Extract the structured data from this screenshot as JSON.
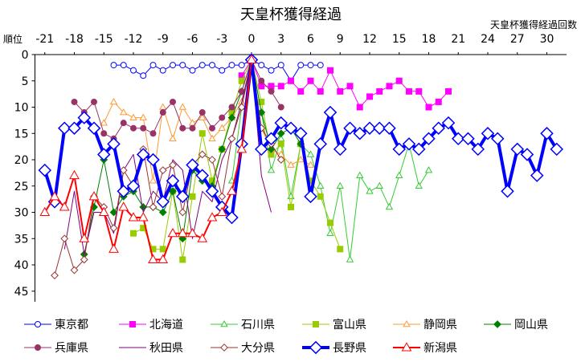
{
  "chart_data": {
    "type": "line",
    "title": "天皇杯獲得経過",
    "xlabel": "天皇杯獲得経過回数",
    "ylabel": "順位",
    "x_ticks": [
      -21,
      -18,
      -15,
      -12,
      -9,
      -6,
      -3,
      0,
      3,
      6,
      9,
      12,
      15,
      18,
      21,
      24,
      27,
      30
    ],
    "y_ticks": [
      0,
      5,
      10,
      15,
      20,
      25,
      30,
      35,
      40,
      45
    ],
    "xlim": [
      -22,
      32
    ],
    "ylim": [
      0,
      47
    ],
    "y_reversed": true,
    "x_axis_position": "top",
    "grid": false,
    "legend": "bottom",
    "series": [
      {
        "name": "東京都",
        "color": "#0000FF",
        "marker": "circle",
        "marker_fill": "open",
        "points": [
          [
            -14,
            2
          ],
          [
            -13,
            2
          ],
          [
            -12,
            3
          ],
          [
            -11,
            4
          ],
          [
            -10,
            2
          ],
          [
            -9,
            3
          ],
          [
            -8,
            2
          ],
          [
            -7,
            2
          ],
          [
            -6,
            3
          ],
          [
            -5,
            2
          ],
          [
            -4,
            2
          ],
          [
            -3,
            3
          ],
          [
            -2,
            2
          ],
          [
            -1,
            2
          ],
          [
            0,
            1
          ],
          [
            1,
            2
          ],
          [
            2,
            3
          ],
          [
            3,
            2
          ],
          [
            4,
            5
          ],
          [
            5,
            2
          ],
          [
            6,
            2
          ],
          [
            7,
            2
          ]
        ]
      },
      {
        "name": "北海道",
        "color": "#FF00FF",
        "marker": "square",
        "marker_fill": "filled",
        "points": [
          [
            -1,
            4
          ],
          [
            0,
            1
          ],
          [
            1,
            6
          ],
          [
            2,
            6
          ],
          [
            3,
            6
          ],
          [
            4,
            5
          ],
          [
            5,
            7
          ],
          [
            6,
            5
          ],
          [
            7,
            7
          ],
          [
            8,
            3
          ],
          [
            9,
            7
          ],
          [
            10,
            6
          ],
          [
            11,
            10
          ],
          [
            12,
            8
          ],
          [
            13,
            7
          ],
          [
            14,
            6
          ],
          [
            15,
            5
          ],
          [
            16,
            7
          ],
          [
            17,
            7
          ],
          [
            18,
            10
          ],
          [
            19,
            9
          ],
          [
            20,
            7
          ]
        ]
      },
      {
        "name": "石川県",
        "color": "#33CC33",
        "marker": "triangle",
        "marker_fill": "open",
        "points": [
          [
            -2,
            24
          ],
          [
            -1,
            10
          ],
          [
            0,
            1
          ],
          [
            1,
            11
          ],
          [
            2,
            22
          ],
          [
            3,
            16
          ],
          [
            4,
            27
          ],
          [
            5,
            17
          ],
          [
            6,
            19
          ],
          [
            7,
            25
          ],
          [
            8,
            34
          ],
          [
            9,
            25
          ],
          [
            10,
            39
          ],
          [
            11,
            23
          ],
          [
            12,
            26
          ],
          [
            13,
            25
          ],
          [
            14,
            29
          ],
          [
            15,
            23
          ],
          [
            16,
            17
          ],
          [
            17,
            25
          ],
          [
            18,
            22
          ]
        ]
      },
      {
        "name": "富山県",
        "color": "#99CC00",
        "marker": "square",
        "marker_fill": "filled",
        "points": [
          [
            -12,
            34
          ],
          [
            -11,
            33
          ],
          [
            -10,
            37
          ],
          [
            -9,
            37
          ],
          [
            -8,
            26
          ],
          [
            -7,
            39
          ],
          [
            -6,
            27
          ],
          [
            -5,
            15
          ],
          [
            -4,
            24
          ],
          [
            -3,
            18
          ],
          [
            -2,
            11
          ],
          [
            -1,
            5
          ],
          [
            0,
            1
          ],
          [
            1,
            9
          ],
          [
            2,
            19
          ],
          [
            3,
            17
          ],
          [
            4,
            29
          ],
          [
            5,
            17
          ],
          [
            6,
            24
          ],
          [
            7,
            27
          ],
          [
            8,
            32
          ],
          [
            9,
            37
          ]
        ]
      },
      {
        "name": "静岡県",
        "color": "#FF9933",
        "marker": "triangle",
        "marker_fill": "open",
        "points": [
          [
            -15,
            13
          ],
          [
            -14,
            9
          ],
          [
            -13,
            11
          ],
          [
            -12,
            12
          ],
          [
            -11,
            12
          ],
          [
            -10,
            24
          ],
          [
            -9,
            10
          ],
          [
            -8,
            16
          ],
          [
            -7,
            10
          ],
          [
            -6,
            13
          ],
          [
            -5,
            12
          ],
          [
            -4,
            16
          ],
          [
            -3,
            14
          ],
          [
            -2,
            12
          ],
          [
            -1,
            9
          ],
          [
            0,
            1
          ],
          [
            1,
            14
          ],
          [
            2,
            18
          ],
          [
            3,
            19
          ],
          [
            4,
            21
          ],
          [
            5,
            20
          ],
          [
            6,
            21
          ]
        ]
      },
      {
        "name": "岡山県",
        "color": "#008000",
        "marker": "diamond",
        "marker_fill": "filled",
        "points": [
          [
            -17,
            38
          ],
          [
            -16,
            29
          ],
          [
            -15,
            20
          ],
          [
            -14,
            30
          ],
          [
            -13,
            27
          ],
          [
            -12,
            26
          ],
          [
            -11,
            29
          ],
          [
            -10,
            29
          ],
          [
            -9,
            30
          ],
          [
            -8,
            26
          ],
          [
            -7,
            35
          ],
          [
            -6,
            22
          ],
          [
            -5,
            24
          ],
          [
            -4,
            25
          ],
          [
            -3,
            18
          ],
          [
            -2,
            12
          ],
          [
            -1,
            7
          ],
          [
            0,
            1
          ],
          [
            1,
            11
          ],
          [
            2,
            18
          ],
          [
            3,
            15
          ],
          [
            4,
            14
          ],
          [
            5,
            17
          ]
        ]
      },
      {
        "name": "兵庫県",
        "color": "#993366",
        "marker": "circle",
        "marker_fill": "filled",
        "points": [
          [
            -18,
            9
          ],
          [
            -17,
            11
          ],
          [
            -16,
            9
          ],
          [
            -15,
            15
          ],
          [
            -14,
            16
          ],
          [
            -13,
            13
          ],
          [
            -12,
            14
          ],
          [
            -11,
            14
          ],
          [
            -10,
            15
          ],
          [
            -9,
            11
          ],
          [
            -8,
            9
          ],
          [
            -7,
            14
          ],
          [
            -6,
            14
          ],
          [
            -5,
            11
          ],
          [
            -4,
            14
          ],
          [
            -3,
            12
          ],
          [
            -2,
            10
          ],
          [
            -1,
            7
          ],
          [
            0,
            1
          ],
          [
            1,
            5
          ],
          [
            2,
            7
          ],
          [
            3,
            10
          ]
        ]
      },
      {
        "name": "秋田県",
        "color": "#800080",
        "marker": "none",
        "marker_fill": "open",
        "points": [
          [
            -19,
            37
          ],
          [
            -18,
            26
          ],
          [
            -17,
            38
          ],
          [
            -16,
            30
          ],
          [
            -15,
            30
          ],
          [
            -14,
            34
          ],
          [
            -13,
            22
          ],
          [
            -12,
            19
          ],
          [
            -11,
            30
          ],
          [
            -10,
            26
          ],
          [
            -9,
            28
          ],
          [
            -8,
            20
          ],
          [
            -7,
            22
          ],
          [
            -6,
            35
          ],
          [
            -5,
            26
          ],
          [
            -4,
            28
          ],
          [
            -3,
            20
          ],
          [
            -2,
            16
          ],
          [
            -1,
            9
          ],
          [
            0,
            1
          ],
          [
            1,
            23
          ],
          [
            2,
            30
          ]
        ]
      },
      {
        "name": "大分県",
        "color": "#993333",
        "marker": "diamond",
        "marker_fill": "open",
        "points": [
          [
            -20,
            42
          ],
          [
            -19,
            35
          ],
          [
            -18,
            41
          ],
          [
            -17,
            39
          ],
          [
            -16,
            27
          ],
          [
            -15,
            29
          ],
          [
            -14,
            33
          ],
          [
            -13,
            22
          ],
          [
            -12,
            25
          ],
          [
            -11,
            18
          ],
          [
            -10,
            29
          ],
          [
            -9,
            22
          ],
          [
            -8,
            21
          ],
          [
            -7,
            30
          ],
          [
            -6,
            21
          ],
          [
            -5,
            19
          ],
          [
            -4,
            20
          ],
          [
            -3,
            27
          ],
          [
            -2,
            16
          ],
          [
            -1,
            10
          ],
          [
            0,
            1
          ],
          [
            1,
            14
          ],
          [
            2,
            17
          ],
          [
            3,
            20
          ]
        ]
      },
      {
        "name": "長野県",
        "color": "#0000FF",
        "marker": "diamond",
        "marker_fill": "open",
        "points": [
          [
            -21,
            22
          ],
          [
            -20,
            28
          ],
          [
            -19,
            14
          ],
          [
            -18,
            14
          ],
          [
            -17,
            12
          ],
          [
            -16,
            14
          ],
          [
            -15,
            19
          ],
          [
            -14,
            17
          ],
          [
            -13,
            26
          ],
          [
            -12,
            25
          ],
          [
            -11,
            19
          ],
          [
            -10,
            20
          ],
          [
            -9,
            28
          ],
          [
            -8,
            24
          ],
          [
            -7,
            27
          ],
          [
            -6,
            21
          ],
          [
            -5,
            23
          ],
          [
            -4,
            26
          ],
          [
            -3,
            29
          ],
          [
            -2,
            31
          ],
          [
            -1,
            17
          ],
          [
            0,
            1
          ],
          [
            1,
            18
          ],
          [
            2,
            16
          ],
          [
            3,
            13
          ],
          [
            4,
            14
          ],
          [
            5,
            15
          ],
          [
            6,
            27
          ],
          [
            7,
            17
          ],
          [
            8,
            11
          ],
          [
            9,
            18
          ],
          [
            10,
            14
          ],
          [
            11,
            15
          ],
          [
            12,
            14
          ],
          [
            13,
            14
          ],
          [
            14,
            14
          ],
          [
            15,
            18
          ],
          [
            16,
            17
          ],
          [
            17,
            18
          ],
          [
            18,
            16
          ],
          [
            19,
            14
          ],
          [
            20,
            13
          ],
          [
            21,
            16
          ],
          [
            22,
            16
          ],
          [
            23,
            18
          ],
          [
            24,
            15
          ],
          [
            25,
            16
          ],
          [
            26,
            26
          ],
          [
            27,
            18
          ],
          [
            28,
            19
          ],
          [
            29,
            23
          ],
          [
            30,
            15
          ],
          [
            31,
            18
          ]
        ]
      },
      {
        "name": "新潟県",
        "color": "#FF0000",
        "marker": "triangle",
        "marker_fill": "open",
        "points": [
          [
            -21,
            30
          ],
          [
            -20,
            27
          ],
          [
            -19,
            29
          ],
          [
            -18,
            23
          ],
          [
            -17,
            35
          ],
          [
            -16,
            27
          ],
          [
            -15,
            30
          ],
          [
            -14,
            37
          ],
          [
            -13,
            29
          ],
          [
            -12,
            31
          ],
          [
            -11,
            31
          ],
          [
            -10,
            39
          ],
          [
            -9,
            39
          ],
          [
            -8,
            34
          ],
          [
            -7,
            34
          ],
          [
            -6,
            34
          ],
          [
            -5,
            35
          ],
          [
            -4,
            31
          ],
          [
            -3,
            30
          ],
          [
            -2,
            26
          ],
          [
            -1,
            18
          ],
          [
            0,
            1
          ]
        ]
      }
    ]
  }
}
